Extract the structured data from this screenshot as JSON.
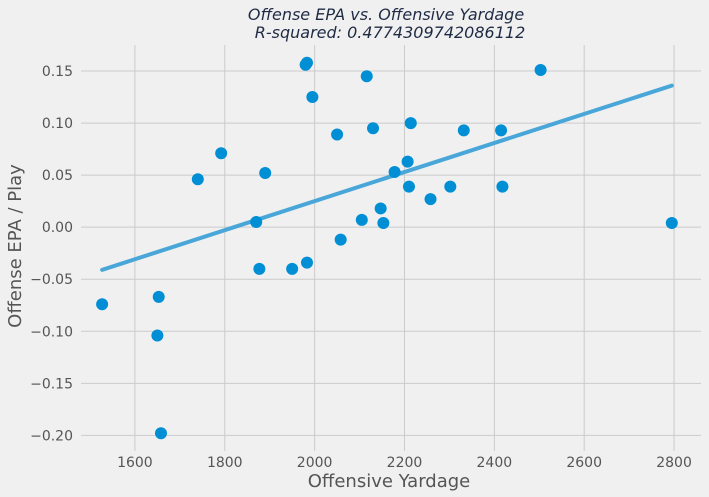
{
  "chart_data": {
    "type": "scatter",
    "title": "Offense EPA vs. Offensive Yardage",
    "subtitle": "R-squared: 0.4774309742086112",
    "xlabel": "Offensive Yardage",
    "ylabel": "Offense EPA / Play",
    "xlim": [
      1480,
      2860
    ],
    "ylim": [
      -0.215,
      0.175
    ],
    "xticks": [
      1600,
      1800,
      2000,
      2200,
      2400,
      2600,
      2800
    ],
    "yticks": [
      -0.2,
      -0.15,
      -0.1,
      -0.05,
      0.0,
      0.05,
      0.1,
      0.15
    ],
    "xtick_labels": [
      "1600",
      "1800",
      "2000",
      "2200",
      "2400",
      "2600",
      "2800"
    ],
    "ytick_labels": [
      "−0.20",
      "−0.15",
      "−0.10",
      "−0.05",
      "0.00",
      "0.05",
      "0.10",
      "0.15"
    ],
    "grid": true,
    "point_color": "#008fd5",
    "line_color": "#49a6d8",
    "points": [
      {
        "x": 1527,
        "y": -0.074
      },
      {
        "x": 1650,
        "y": -0.104
      },
      {
        "x": 1653,
        "y": -0.067
      },
      {
        "x": 1658,
        "y": -0.198
      },
      {
        "x": 1740,
        "y": 0.046
      },
      {
        "x": 1792,
        "y": 0.071
      },
      {
        "x": 1870,
        "y": 0.005
      },
      {
        "x": 1877,
        "y": -0.04
      },
      {
        "x": 1890,
        "y": 0.052
      },
      {
        "x": 1950,
        "y": -0.04
      },
      {
        "x": 1980,
        "y": 0.156
      },
      {
        "x": 1983,
        "y": 0.158
      },
      {
        "x": 1983,
        "y": -0.034
      },
      {
        "x": 1995,
        "y": 0.125
      },
      {
        "x": 2050,
        "y": 0.089
      },
      {
        "x": 2058,
        "y": -0.012
      },
      {
        "x": 2105,
        "y": 0.007
      },
      {
        "x": 2116,
        "y": 0.145
      },
      {
        "x": 2130,
        "y": 0.095
      },
      {
        "x": 2147,
        "y": 0.018
      },
      {
        "x": 2153,
        "y": 0.004
      },
      {
        "x": 2178,
        "y": 0.053
      },
      {
        "x": 2207,
        "y": 0.063
      },
      {
        "x": 2210,
        "y": 0.039
      },
      {
        "x": 2214,
        "y": 0.1
      },
      {
        "x": 2258,
        "y": 0.027
      },
      {
        "x": 2302,
        "y": 0.039
      },
      {
        "x": 2332,
        "y": 0.093
      },
      {
        "x": 2415,
        "y": 0.093
      },
      {
        "x": 2418,
        "y": 0.039
      },
      {
        "x": 2503,
        "y": 0.151
      },
      {
        "x": 2795,
        "y": 0.004
      }
    ],
    "trendline": {
      "x": [
        1527,
        2795
      ],
      "y": [
        -0.041,
        0.136
      ]
    }
  }
}
